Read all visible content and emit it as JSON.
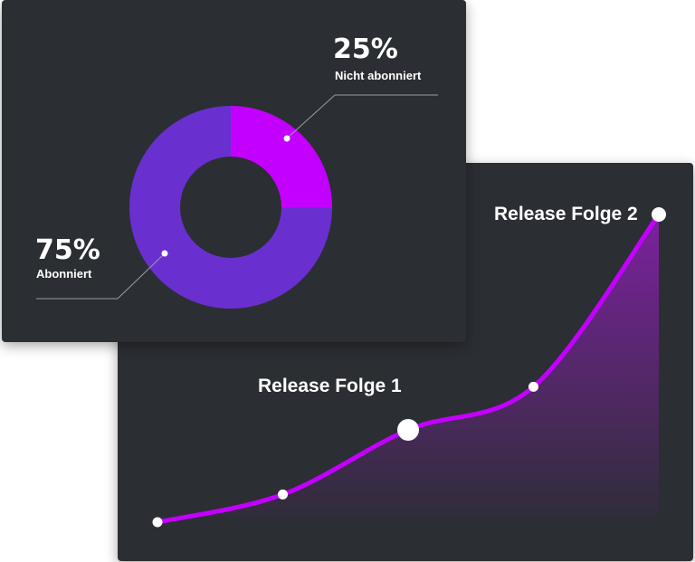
{
  "colors": {
    "card_bg": "#2b2e33",
    "subscribed": "#6a2fcf",
    "not_subscribed": "#c300ff",
    "line": "#c300ff",
    "point": "#ffffff",
    "leader": "#9a9ca1"
  },
  "chart_data": [
    {
      "type": "pie",
      "variant": "donut",
      "slices": [
        {
          "label": "Nicht abonniert",
          "value": 25,
          "value_label": "25%"
        },
        {
          "label": "Abonniert",
          "value": 75,
          "value_label": "75%"
        }
      ]
    },
    {
      "type": "area",
      "x": [
        0,
        1,
        2,
        3,
        4
      ],
      "y": [
        0,
        9,
        30,
        44,
        100
      ],
      "point_labels": [
        "",
        "",
        "Release Folge 1",
        "",
        "Release Folge 2"
      ],
      "highlighted_points": [
        2,
        4
      ],
      "grid": false,
      "legend": "none"
    }
  ]
}
